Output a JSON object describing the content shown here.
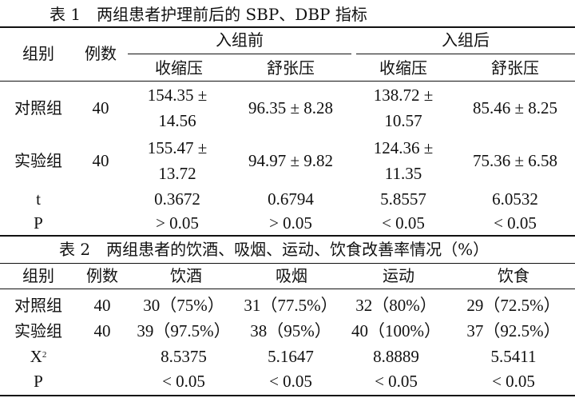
{
  "table1": {
    "caption": "表 1　两组患者护理前后的 SBP、DBP 指标",
    "headers": {
      "group": "组别",
      "count": "例数",
      "before": "入组前",
      "after": "入组后",
      "sbp_before": "收缩压",
      "dbp_before": "舒张压",
      "sbp_after": "收缩压",
      "dbp_after": "舒张压"
    },
    "rows": [
      {
        "group": "对照组",
        "count": "40",
        "sbp_before": "154.35 ± 14.56",
        "dbp_before": "96.35 ± 8.28",
        "sbp_after": "138.72 ± 10.57",
        "dbp_after": "85.46 ± 8.25"
      },
      {
        "group": "实验组",
        "count": "40",
        "sbp_before": "155.47 ± 13.72",
        "dbp_before": "94.97 ± 9.82",
        "sbp_after": "124.36 ± 11.35",
        "dbp_after": "75.36 ± 6.58"
      },
      {
        "group": "t",
        "count": "",
        "sbp_before": "0.3672",
        "dbp_before": "0.6794",
        "sbp_after": "5.8557",
        "dbp_after": "6.0532"
      },
      {
        "group": "P",
        "count": "",
        "sbp_before": "> 0.05",
        "dbp_before": "> 0.05",
        "sbp_after": "< 0.05",
        "dbp_after": "< 0.05"
      }
    ]
  },
  "table2": {
    "caption": "表 2　两组患者的饮酒、吸烟、运动、饮食改善率情况（%）",
    "headers": {
      "group": "组别",
      "count": "例数",
      "drinking": "饮酒",
      "smoking": "吸烟",
      "exercise": "运动",
      "diet": "饮食"
    },
    "rows": [
      {
        "group": "对照组",
        "count": "40",
        "drinking": "30（75%）",
        "smoking": "31（77.5%）",
        "exercise": "32（80%）",
        "diet": "29（72.5%）"
      },
      {
        "group": "实验组",
        "count": "40",
        "drinking": "39（97.5%）",
        "smoking": "38（95%）",
        "exercise": "40（100%）",
        "diet": "37（92.5%）"
      },
      {
        "group": "X",
        "group_sup": "2",
        "count": "",
        "drinking": "8.5375",
        "smoking": "5.1647",
        "exercise": "8.8889",
        "diet": "5.5411"
      },
      {
        "group": "P",
        "count": "",
        "drinking": "< 0.05",
        "smoking": "< 0.05",
        "exercise": "< 0.05",
        "diet": "< 0.05"
      }
    ]
  }
}
